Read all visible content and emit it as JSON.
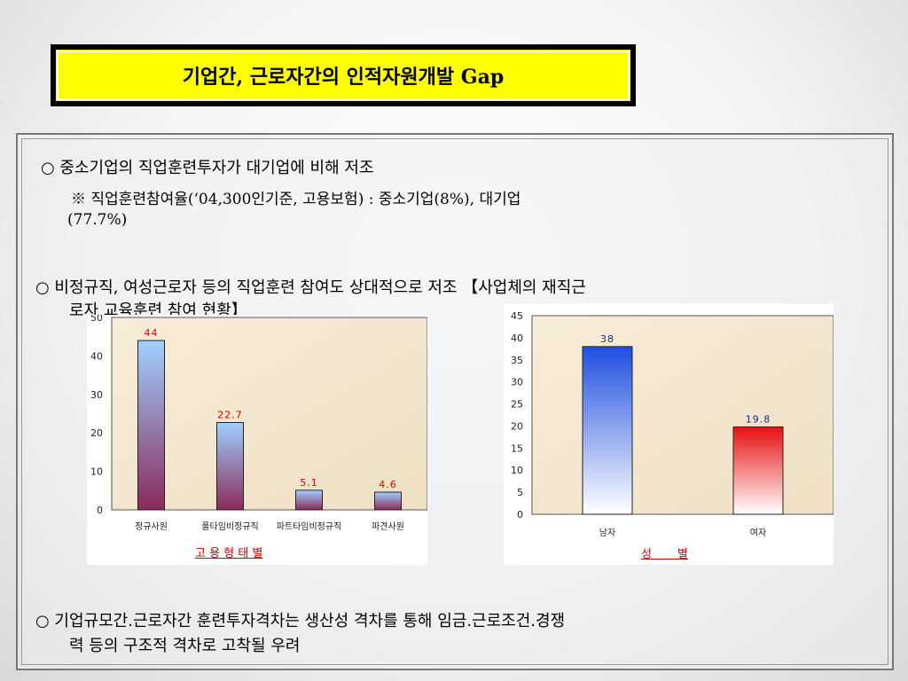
{
  "title": "기업간, 근로자간의 인적자원개발 Gap",
  "bullets": {
    "b1": "○ 중소기업의 직업훈련투자가 대기업에 비해 저조",
    "b1_note_line1": "※ 직업훈련참여율(‘04,300인기준, 고용보험) : 중소기업(8%), 대기업",
    "b1_note_line2": "(77.7%)",
    "b2_line1": "○ 비정규직, 여성근로자 등의 직업훈련 참여도 상대적으로 저조 【사업체의 재직근",
    "b2_line2": "로자 교육훈련 참여 현황】",
    "b3_line1": "○ 기업규모간.근로자간 훈련투자격차는 생산성 격차를 통해 임금.근로조건.경쟁",
    "b3_line2": "력 등의 구조적 격차로 고착될 우려"
  },
  "chart_data": [
    {
      "type": "bar",
      "categories": [
        "정규사원",
        "풀타임비정규직",
        "파트타임비정규직",
        "파견사원"
      ],
      "values": [
        44,
        22.7,
        5.1,
        4.6
      ],
      "value_labels": [
        "44",
        "22.7",
        "5.1",
        "4.6"
      ],
      "xlabel": "고 용 형 태 별",
      "ylim": [
        0,
        50
      ],
      "yticks": [
        "0",
        "10",
        "20",
        "30",
        "40",
        "50"
      ],
      "grid": false,
      "colors": {
        "top": "#9fd0ff",
        "bottom": "#8a2a5a",
        "label": "#cc0000"
      }
    },
    {
      "type": "bar",
      "categories": [
        "남자",
        "여자"
      ],
      "values": [
        38,
        19.8
      ],
      "value_labels": [
        "38",
        "19.8"
      ],
      "xlabel": "성       별",
      "ylim": [
        0,
        45
      ],
      "yticks": [
        "0",
        "5",
        "10",
        "15",
        "20",
        "25",
        "30",
        "35",
        "40",
        "45"
      ],
      "grid": false,
      "colors": {
        "male_top": "#1f4fe0",
        "female_top": "#e81010",
        "bottom": "#ffffff",
        "label": "#1a2a8a"
      }
    }
  ]
}
